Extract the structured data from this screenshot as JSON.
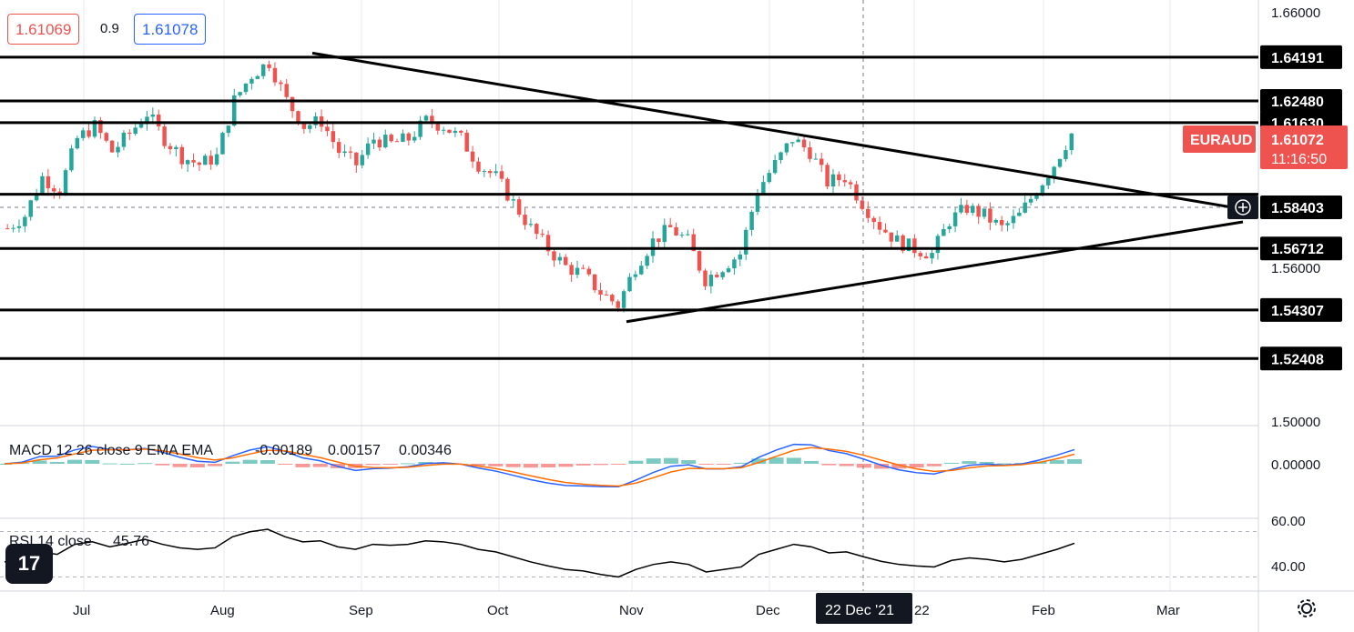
{
  "quote": {
    "bid": "1.61069",
    "ask": "1.61078",
    "spread": "0.9"
  },
  "symbol": "EURAUD",
  "current_price": "1.61072",
  "countdown": "11:16:50",
  "crosshair_time": "22 Dec '21",
  "crosshair_price": "1.58403",
  "colors": {
    "up": "#26a69a",
    "down": "#ef5350",
    "line": "#000000",
    "macd": "#2962ff",
    "signal": "#ff6d00"
  },
  "chart_data": [
    {
      "type": "candlestick",
      "title": "EURAUD",
      "x_ticks": [
        "Jul",
        "Aug",
        "Sep",
        "Oct",
        "Nov",
        "Dec",
        "22",
        "Feb",
        "Mar"
      ],
      "y_ticks": [
        "1.66000",
        "1.56000",
        "1.50000"
      ],
      "ylim": [
        1.5,
        1.66
      ],
      "horizontal_levels": [
        "1.64191",
        "1.62480",
        "1.61630",
        "1.58403",
        "1.56712",
        "1.54307",
        "1.52408"
      ],
      "trendlines": [
        {
          "from": [
            "Aug 20",
            1.6435
          ],
          "to": [
            "Mar 15",
            1.5825
          ]
        },
        {
          "from": [
            "Nov 1",
            1.5385
          ],
          "to": [
            "Mar 15",
            1.5775
          ]
        }
      ],
      "approx_closes": [
        1.575,
        1.58,
        1.595,
        1.59,
        1.61,
        1.615,
        1.605,
        1.612,
        1.62,
        1.61,
        1.603,
        1.6,
        1.603,
        1.625,
        1.635,
        1.64,
        1.625,
        1.615,
        1.617,
        1.605,
        1.6,
        1.61,
        1.608,
        1.61,
        1.617,
        1.615,
        1.61,
        1.6,
        1.595,
        1.585,
        1.575,
        1.567,
        1.56,
        1.557,
        1.55,
        1.545,
        1.56,
        1.57,
        1.575,
        1.57,
        1.555,
        1.56,
        1.565,
        1.59,
        1.6,
        1.61,
        1.605,
        1.593,
        1.595,
        1.585,
        1.576,
        1.57,
        1.567,
        1.565,
        1.578,
        1.583,
        1.58,
        1.575,
        1.58,
        1.59,
        1.6,
        1.612
      ]
    },
    {
      "type": "line",
      "title": "MACD 12 26 close 9 EMA EMA",
      "values_shown": [
        "-0.00189",
        "0.00157",
        "0.00346"
      ],
      "y_ticks": [
        "0.00000"
      ],
      "series": [
        {
          "name": "MACD"
        },
        {
          "name": "Signal"
        },
        {
          "name": "Histogram"
        }
      ]
    },
    {
      "type": "line",
      "title": "RSI 14 close",
      "value_shown": "45.76",
      "y_ticks": [
        "60.00",
        "40.00"
      ],
      "ylim": [
        20,
        80
      ]
    }
  ]
}
